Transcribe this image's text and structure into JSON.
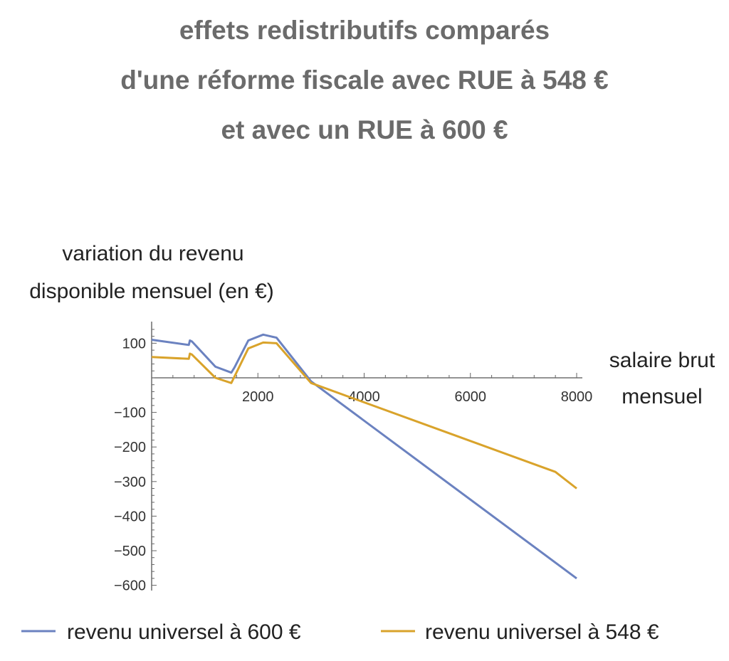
{
  "chart_data": {
    "type": "line",
    "title": [
      "effets redistributifs comparés",
      "d'une réforme fiscale avec RUE à 548 €",
      "et avec un RUE à 600 €"
    ],
    "ylabel": [
      "variation du revenu",
      "disponible mensuel (en €)"
    ],
    "xlabel": [
      "salaire brut",
      "mensuel"
    ],
    "xlim": [
      0,
      8000
    ],
    "ylim": [
      -600,
      150
    ],
    "x_ticks": [
      2000,
      4000,
      6000,
      8000
    ],
    "y_ticks": [
      100,
      -100,
      -200,
      -300,
      -400,
      -500,
      -600
    ],
    "grid": false,
    "legend_position": "bottom",
    "series": [
      {
        "name": "revenu universel à 600 €",
        "color": "#6b82c0",
        "x": [
          0,
          700,
          720,
          760,
          1200,
          1500,
          1560,
          1820,
          2100,
          2350,
          3000,
          8000
        ],
        "y": [
          110,
          95,
          108,
          105,
          32,
          15,
          30,
          108,
          125,
          116,
          -10,
          -580
        ]
      },
      {
        "name": "revenu universel à 548 €",
        "color": "#d9a32b",
        "x": [
          0,
          700,
          720,
          760,
          1200,
          1500,
          1820,
          2100,
          2350,
          3000,
          7600,
          8000
        ],
        "y": [
          60,
          55,
          70,
          67,
          0,
          -15,
          85,
          102,
          100,
          -15,
          -272,
          -320
        ]
      }
    ]
  }
}
